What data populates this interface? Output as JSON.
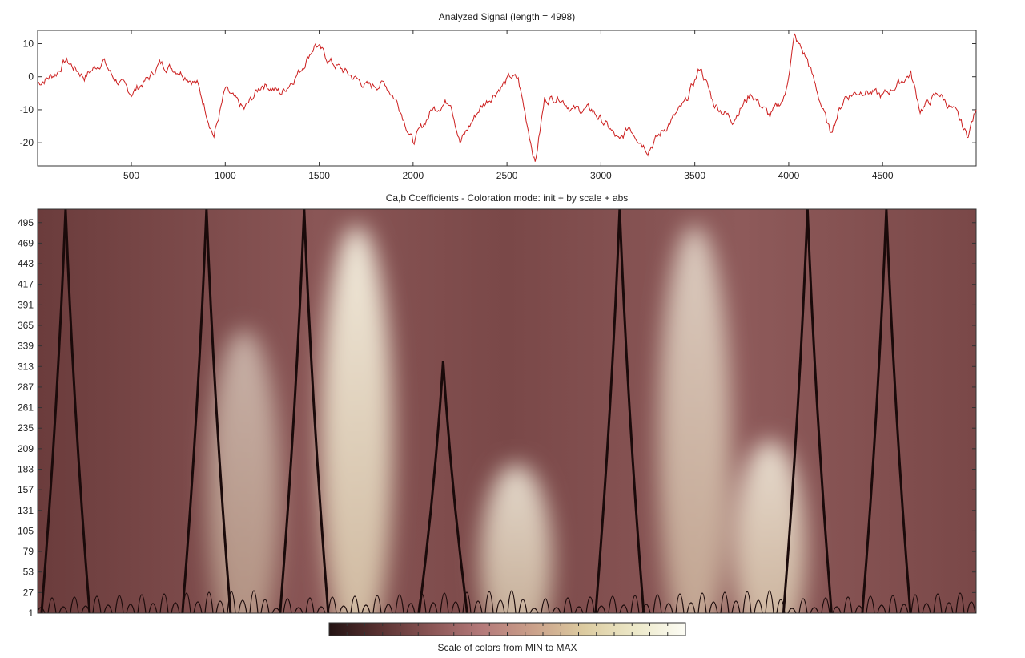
{
  "signal_panel": {
    "title": "Analyzed Signal  (length = 4998)"
  },
  "coef_panel": {
    "title": "Ca,b Coefficients - Coloration mode: init + by scale + abs"
  },
  "colorbar": {
    "label": "Scale of colors from MIN to MAX",
    "stops": [
      "#241313",
      "#5a3232",
      "#8a5555",
      "#b47a7a",
      "#caa08a",
      "#dccba0",
      "#ece8c8",
      "#fcfcf4"
    ]
  },
  "chart_data": [
    {
      "type": "line",
      "title": "Analyzed Signal  (length = 4998)",
      "xlim": [
        1,
        4998
      ],
      "ylim": [
        -27,
        14
      ],
      "xticks": [
        500,
        1000,
        1500,
        2000,
        2500,
        3000,
        3500,
        4000,
        4500
      ],
      "yticks": [
        10,
        0,
        -10,
        -20
      ],
      "line_color": "#cc1f1f",
      "series": [
        {
          "x": [
            1,
            100,
            150,
            250,
            350,
            400,
            500,
            600,
            650,
            750,
            850,
            940,
            1000,
            1100,
            1200,
            1300,
            1400,
            1480,
            1550,
            1650,
            1760,
            1850,
            1920,
            2000,
            2100,
            2200,
            2250,
            2350,
            2450,
            2520,
            2560,
            2650,
            2700,
            2780,
            2850,
            2950,
            3050,
            3100,
            3150,
            3250,
            3350,
            3450,
            3530,
            3600,
            3700,
            3800,
            3900,
            3980,
            4030,
            4100,
            4220,
            4300,
            4400,
            4500,
            4650,
            4700,
            4800,
            4900,
            4950,
            4998
          ],
          "y": [
            -2,
            1,
            5,
            0,
            5,
            0,
            -5,
            0,
            4,
            2,
            -2,
            -18,
            -4,
            -10,
            -2,
            -5,
            2,
            10,
            5,
            1,
            -3,
            -2,
            -8,
            -20,
            -10,
            -7,
            -20,
            -10,
            -4,
            0,
            -1,
            -26,
            -7,
            -6,
            -10,
            -10,
            -16,
            -20,
            -15,
            -22,
            -15,
            -8,
            3,
            -8,
            -13,
            -5,
            -12,
            -6,
            12,
            5,
            -17,
            -6,
            -4,
            -6,
            1,
            -10,
            -5,
            -12,
            -18,
            -10
          ]
        }
      ]
    },
    {
      "type": "heatmap",
      "title": "Ca,b Coefficients - Coloration mode: init + by scale + abs",
      "xlim": [
        1,
        4998
      ],
      "ylim": [
        1,
        512
      ],
      "yticks": [
        1,
        27,
        53,
        79,
        105,
        131,
        157,
        183,
        209,
        235,
        261,
        287,
        313,
        339,
        365,
        391,
        417,
        443,
        469,
        495
      ],
      "colorscale": "MIN to MAX (dark brown to pale cream)",
      "zero_lines": [
        {
          "x": 150,
          "top": 512
        },
        {
          "x": 900,
          "top": 512
        },
        {
          "x": 1420,
          "top": 512
        },
        {
          "x": 2160,
          "top": 320
        },
        {
          "x": 3100,
          "top": 512
        },
        {
          "x": 4100,
          "top": 512
        },
        {
          "x": 4520,
          "top": 512
        }
      ],
      "bright_zones": [
        {
          "x": 1700,
          "top": 512,
          "intensity": 0.95
        },
        {
          "x": 2550,
          "top": 210,
          "intensity": 0.85
        },
        {
          "x": 3500,
          "top": 512,
          "intensity": 0.75
        },
        {
          "x": 3900,
          "top": 240,
          "intensity": 0.85
        },
        {
          "x": 1100,
          "top": 380,
          "intensity": 0.6
        }
      ]
    }
  ]
}
